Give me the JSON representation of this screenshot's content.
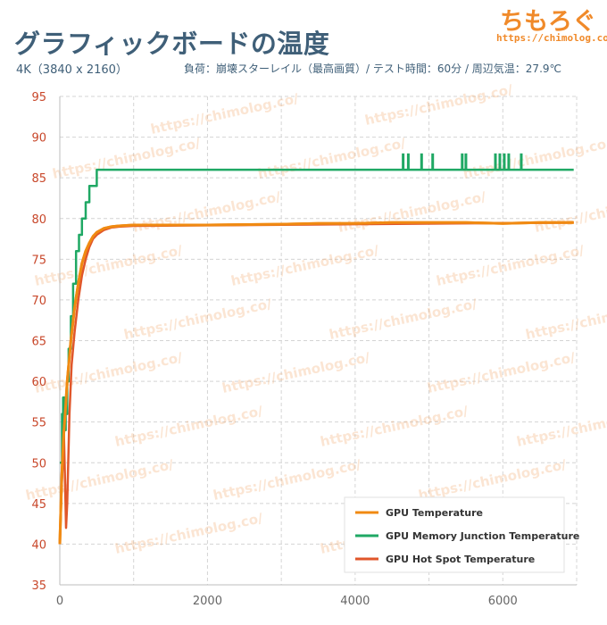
{
  "header": {
    "title": "グラフィックボードの温度",
    "subtitle_left": "4K（3840 x 2160）",
    "subtitle_right": "負荷：崩壊スターレイル（最高画質）/ テスト時間：60分 / 周辺気温：27.9℃"
  },
  "brand": {
    "logo_text": "ちもろぐ",
    "url": "https://chimolog.co/"
  },
  "watermark_text": "https://chimolog.co/",
  "colors": {
    "title": "#3f5f78",
    "brand": "#f08a2a",
    "gpu": "#f08a12",
    "memory": "#1fa864",
    "hotspot": "#e0562a",
    "ytick": "#c8472a",
    "grid": "#d4d4d4"
  },
  "chart_data": {
    "type": "line",
    "title": "グラフィックボードの温度",
    "xlabel": "",
    "ylabel": "",
    "xlim": [
      0,
      7000
    ],
    "ylim": [
      35,
      95
    ],
    "x_ticks": [
      0,
      2000,
      4000,
      6000
    ],
    "y_ticks": [
      35,
      40,
      45,
      50,
      55,
      60,
      65,
      70,
      75,
      80,
      85,
      90,
      95
    ],
    "legend_position": "bottom-right",
    "series": [
      {
        "name": "GPU Temperature",
        "points": [
          [
            0,
            40
          ],
          [
            25,
            48
          ],
          [
            50,
            53
          ],
          [
            80,
            57
          ],
          [
            100,
            60
          ],
          [
            150,
            65
          ],
          [
            200,
            69
          ],
          [
            250,
            72
          ],
          [
            300,
            74.5
          ],
          [
            350,
            76
          ],
          [
            400,
            77
          ],
          [
            450,
            77.8
          ],
          [
            500,
            78.3
          ],
          [
            600,
            78.8
          ],
          [
            700,
            79
          ],
          [
            800,
            79.1
          ],
          [
            1000,
            79.2
          ],
          [
            2000,
            79.2
          ],
          [
            3000,
            79.3
          ],
          [
            3500,
            79.4
          ],
          [
            4000,
            79.4
          ],
          [
            4500,
            79.5
          ],
          [
            5000,
            79.5
          ],
          [
            5500,
            79.5
          ],
          [
            6000,
            79.4
          ],
          [
            6500,
            79.5
          ],
          [
            6960,
            79.5
          ]
        ]
      },
      {
        "name": "GPU Memory Junction Temperature",
        "points": [
          [
            0,
            50
          ],
          [
            30,
            56
          ],
          [
            45,
            58
          ],
          [
            60,
            54
          ],
          [
            80,
            56
          ],
          [
            100,
            60
          ],
          [
            120,
            64
          ],
          [
            150,
            68
          ],
          [
            180,
            72
          ],
          [
            220,
            76
          ],
          [
            260,
            78
          ],
          [
            300,
            80
          ],
          [
            350,
            82
          ],
          [
            400,
            84
          ],
          [
            480,
            84
          ],
          [
            500,
            86
          ],
          [
            6960,
            86
          ]
        ],
        "spikes_to": 88,
        "spike_x": [
          4650,
          4720,
          4900,
          5050,
          5450,
          5500,
          5900,
          5960,
          6020,
          6080,
          6250
        ]
      },
      {
        "name": "GPU Hot Spot Temperature",
        "points": [
          [
            0,
            40
          ],
          [
            20,
            46
          ],
          [
            40,
            50
          ],
          [
            55,
            54
          ],
          [
            70,
            48
          ],
          [
            85,
            42
          ],
          [
            100,
            45
          ],
          [
            130,
            56
          ],
          [
            160,
            62
          ],
          [
            200,
            66
          ],
          [
            250,
            70
          ],
          [
            300,
            73
          ],
          [
            350,
            75
          ],
          [
            400,
            76.5
          ],
          [
            450,
            77.5
          ],
          [
            500,
            78
          ],
          [
            600,
            78.6
          ],
          [
            700,
            78.9
          ],
          [
            800,
            79
          ],
          [
            1000,
            79.1
          ],
          [
            6960,
            79.5
          ]
        ]
      }
    ]
  }
}
